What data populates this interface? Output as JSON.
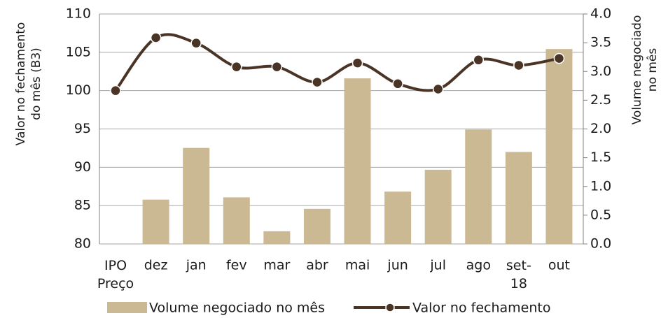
{
  "chart_data": {
    "type": "bar_line",
    "categories": [
      "IPO Preço",
      "dez",
      "jan",
      "fev",
      "mar",
      "abr",
      "mai",
      "jun",
      "jul",
      "ago",
      "set-18",
      "out"
    ],
    "series": [
      {
        "name": "Volume negociado no mês",
        "type": "bar",
        "axis": "y2",
        "color": "#cbb994",
        "values": [
          null,
          0.77,
          1.67,
          0.81,
          0.22,
          0.61,
          2.88,
          0.91,
          1.29,
          1.99,
          1.6,
          3.39
        ]
      },
      {
        "name": "Valor no fechamento",
        "type": "line",
        "axis": "y",
        "color": "#4a3426",
        "values": [
          100.0,
          106.9,
          106.2,
          103.1,
          103.1,
          101.1,
          103.6,
          100.9,
          100.2,
          104.0,
          103.3,
          104.2
        ]
      }
    ],
    "ylabel": [
      "Valor no fechamento",
      "do mês (B3)"
    ],
    "y2label": [
      "Volume negociado",
      "no mês"
    ],
    "ylim": [
      80,
      110
    ],
    "yticks": [
      80,
      85,
      90,
      95,
      100,
      105,
      110
    ],
    "y2lim": [
      0,
      4
    ],
    "y2ticks": [
      {
        "value": 0,
        "label": "0.0"
      },
      {
        "value": 0.5,
        "label": "0.5"
      },
      {
        "value": 1,
        "label": "1.0"
      },
      {
        "value": 1.5,
        "label": "1.5"
      },
      {
        "value": 2,
        "label": "2.0"
      },
      {
        "value": 2.5,
        "label": "2.5"
      },
      {
        "value": 3,
        "label": "3.0"
      },
      {
        "value": 3.5,
        "label": "3.5"
      },
      {
        "value": 4,
        "label": "4.0"
      }
    ],
    "grid": true,
    "legend": "bottom"
  }
}
